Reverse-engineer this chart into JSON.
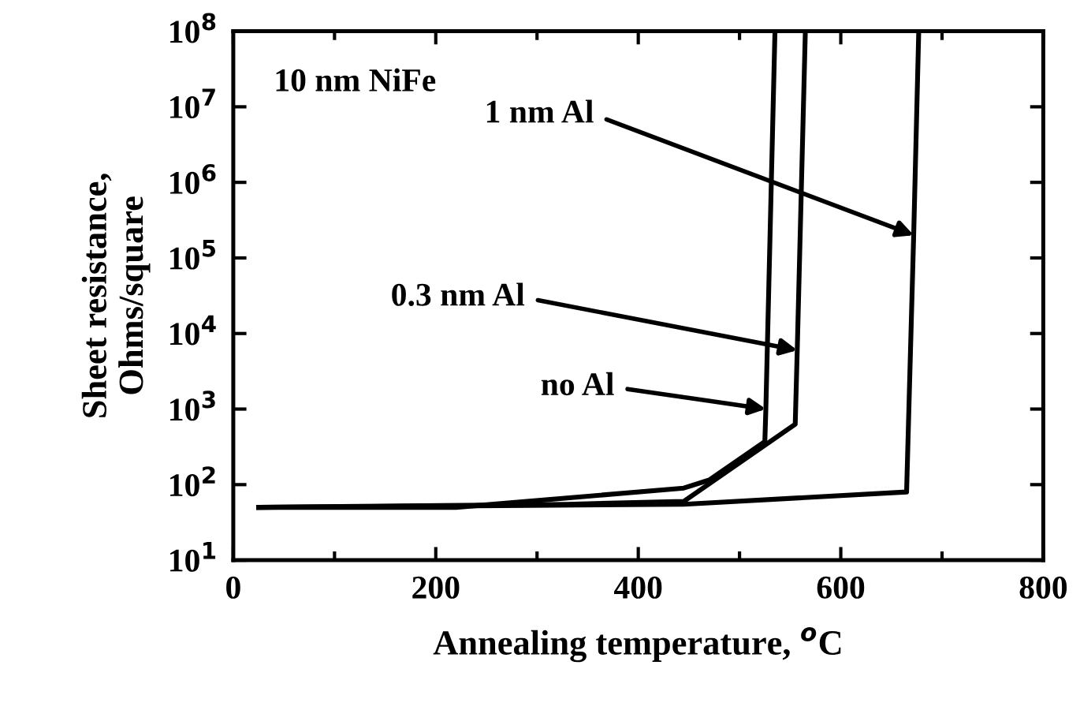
{
  "chart_data": {
    "type": "line",
    "xlabel": "Annealing temperature, $^{o}$C",
    "ylabel": "Sheet resistance,\nOhms/square",
    "log": "y",
    "grid": false,
    "legend": false,
    "marker": "none",
    "line_style": "solid",
    "xlim": [
      0,
      800
    ],
    "xticks": [
      0,
      200,
      400,
      600,
      800
    ],
    "ylim": [
      10,
      100000000
    ],
    "yticks": [
      {
        "value": 10,
        "label": "10$^{1}$"
      },
      {
        "value": 100,
        "label": "10$^{2}$"
      },
      {
        "value": 1000,
        "label": "10$^{3}$"
      },
      {
        "value": 10000,
        "label": "10$^{4}$"
      },
      {
        "value": 100000,
        "label": "10$^{5}$"
      },
      {
        "value": 1000000,
        "label": "10$^{6}$"
      },
      {
        "value": 10000000,
        "label": "10$^{7}$"
      },
      {
        "value": 100000000,
        "label": "10$^{8}$"
      }
    ],
    "series": [
      {
        "color": "#000000",
        "x": [
          25,
          220,
          445,
          470,
          525,
          526,
          535
        ],
        "values": [
          50,
          50,
          90,
          115,
          370,
          1000,
          100000000
        ]
      },
      {
        "color": "#000000",
        "x": [
          25,
          330,
          445,
          555,
          557,
          565
        ],
        "values": [
          50,
          55,
          60,
          630,
          6000,
          100000000
        ]
      },
      {
        "color": "#000000",
        "x": [
          25,
          445,
          665,
          672,
          677
        ],
        "values": [
          50,
          55,
          80,
          200000,
          100000000
        ]
      }
    ],
    "annotations": [
      "10 nm NiFe",
      {
        "text": "1 nm Al",
        "x": 672,
        "y": 200000
      },
      {
        "text": "0.3 nm Al",
        "x": 557,
        "y": 6000
      },
      {
        "text": "no Al",
        "x": 526,
        "y": 1000
      }
    ]
  }
}
